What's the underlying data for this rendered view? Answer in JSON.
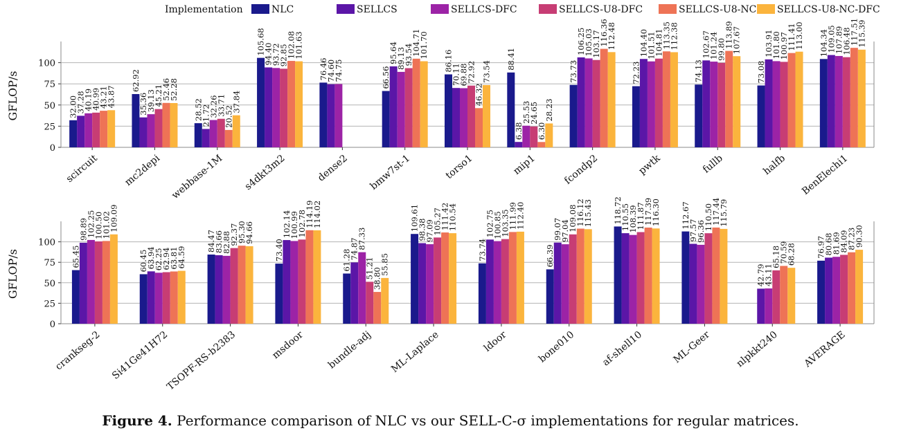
{
  "legend": {
    "title": "Implementation",
    "entries": [
      "NLC",
      "SELLCS",
      "SELLCS-DFC",
      "SELLCS-U8-DFC",
      "SELLCS-U8-NC",
      "SELLCS-U8-NC-DFC"
    ]
  },
  "colors": [
    "#1a1a8c",
    "#5b16a7",
    "#9c23a6",
    "#c73d74",
    "#ee7356",
    "#fbb43d"
  ],
  "caption": {
    "label": "Figure 4.",
    "text": "Performance comparison of NLC vs our SELL-C-σ implementations for regular matrices."
  },
  "chart_data": [
    {
      "type": "bar",
      "ylabel": "GFLOP/s",
      "ylim": [
        0,
        125
      ],
      "yticks": [
        0,
        25,
        50,
        75,
        100
      ],
      "grid": true,
      "legend_position": "top",
      "categories": [
        "scircuit",
        "mc2depi",
        "webbase-1M",
        "s4dkt3m2",
        "dense2",
        "bmw7st-1",
        "torso1",
        "mip1",
        "fcondp2",
        "pwtk",
        "fullb",
        "halfb",
        "BenElechi1"
      ],
      "series": [
        {
          "name": "NLC",
          "values": [
            32.0,
            62.92,
            28.52,
            105.68,
            76.46,
            66.56,
            86.16,
            88.41,
            73.73,
            72.23,
            74.13,
            73.08,
            104.34
          ]
        },
        {
          "name": "SELLCS",
          "values": [
            37.28,
            35.36,
            21.72,
            94.4,
            74.6,
            95.64,
            70.11,
            6.38,
            106.25,
            104.4,
            102.67,
            103.91,
            109.05
          ]
        },
        {
          "name": "SELLCS-DFC",
          "values": [
            40.19,
            39.13,
            32.26,
            93.72,
            74.75,
            89.13,
            69.88,
            25.53,
            105.03,
            101.51,
            101.24,
            101.8,
            107.89
          ]
        },
        {
          "name": "SELLCS-U8-DFC",
          "values": [
            40.99,
            45.21,
            33.71,
            92.85,
            null,
            93.54,
            72.92,
            24.65,
            103.17,
            104.81,
            99.8,
            100.97,
            106.48
          ]
        },
        {
          "name": "SELLCS-U8-NC",
          "values": [
            43.21,
            52.46,
            20.52,
            102.08,
            null,
            104.71,
            46.32,
            6.3,
            116.36,
            113.35,
            113.89,
            111.41,
            117.51
          ]
        },
        {
          "name": "SELLCS-U8-NC-DFC",
          "values": [
            43.87,
            52.28,
            37.84,
            101.63,
            null,
            101.7,
            73.54,
            28.23,
            112.48,
            112.38,
            107.67,
            113.0,
            115.39
          ]
        }
      ],
      "labels": [
        [
          "32.00",
          "62.92",
          "28.52",
          "105.68",
          "76.46",
          "66.56",
          "86.16",
          "88.41",
          "73.73",
          "72.23",
          "74.13",
          "73.08",
          "104.34"
        ],
        [
          "37.28",
          "35.36",
          "21.72",
          "94.40",
          "74.60",
          "95.64",
          "70.11",
          "6.38",
          "106.25",
          "104.40",
          "102.67",
          "103.91",
          "109.05"
        ],
        [
          "40.19",
          "39.13",
          "32.26",
          "93.72",
          "74.75",
          "89.13",
          "69.88",
          "25.53",
          "105.03",
          "101.51",
          "101.24",
          "101.80",
          "107.89"
        ],
        [
          "40.99",
          "45.21",
          "33.71",
          "92.85",
          "",
          "93.54",
          "72.92",
          "24.65",
          "103.17",
          "104.81",
          "99.80",
          "100.97",
          "106.48"
        ],
        [
          "43.21",
          "52.46",
          "20.52",
          "102.08",
          "",
          "104.71",
          "46.32",
          "6.30",
          "116.36",
          "113.35",
          "113.89",
          "111.41",
          "117.51"
        ],
        [
          "43.87",
          "52.28",
          "37.84",
          "101.63",
          "",
          "101.70",
          "73.54",
          "28.23",
          "112.48",
          "112.38",
          "107.67",
          "113.00",
          "115.39"
        ]
      ]
    },
    {
      "type": "bar",
      "ylabel": "GFLOP/s",
      "ylim": [
        0,
        125
      ],
      "yticks": [
        0,
        25,
        50,
        75,
        100
      ],
      "grid": true,
      "categories": [
        "crankseg-2",
        "Si41Ge41H72",
        "TSOPF-RS-b2383",
        "msdoor",
        "bundle-adj",
        "ML-Laplace",
        "ldoor",
        "bone010",
        "af-shell10",
        "ML-Geer",
        "nlpkkt240",
        "AVERAGE"
      ],
      "series": [
        {
          "name": "NLC",
          "values": [
            65.45,
            60.45,
            84.47,
            73.4,
            61.28,
            109.61,
            73.74,
            66.39,
            118.72,
            112.67,
            null,
            76.97
          ]
        },
        {
          "name": "SELLCS",
          "values": [
            98.89,
            63.94,
            83.66,
            102.14,
            74.87,
            98.38,
            102.75,
            99.07,
            110.55,
            97.57,
            42.79,
            80.68
          ]
        },
        {
          "name": "SELLCS-DFC",
          "values": [
            102.25,
            62.25,
            82.88,
            100.99,
            87.33,
            97.09,
            100.85,
            97.04,
            108.39,
            96.36,
            43.11,
            81.69
          ]
        },
        {
          "name": "SELLCS-U8-DFC",
          "values": [
            100.5,
            62.94,
            92.37,
            102.78,
            51.21,
            105.27,
            103.35,
            109.08,
            111.87,
            110.5,
            65.18,
            84.09
          ]
        },
        {
          "name": "SELLCS-U8-NC",
          "values": [
            101.02,
            63.81,
            95.3,
            114.19,
            38.8,
            111.42,
            111.99,
            116.12,
            117.39,
            117.44,
            70.59,
            87.23
          ]
        },
        {
          "name": "SELLCS-U8-NC-DFC",
          "values": [
            109.09,
            64.59,
            94.66,
            114.02,
            55.85,
            110.54,
            112.4,
            115.43,
            116.3,
            115.79,
            68.28,
            90.3
          ]
        }
      ],
      "labels": [
        [
          "65.45",
          "60.45",
          "84.47",
          "73.40",
          "61.28",
          "109.61",
          "73.74",
          "66.39",
          "118.72",
          "112.67",
          "",
          "76.97"
        ],
        [
          "98.89",
          "63.94",
          "83.66",
          "102.14",
          "74.87",
          "98.38",
          "102.75",
          "99.07",
          "110.55",
          "97.57",
          "42.79",
          "80.68"
        ],
        [
          "102.25",
          "62.25",
          "82.88",
          "100.99",
          "87.33",
          "97.09",
          "100.85",
          "97.04",
          "108.39",
          "96.36",
          "43.11",
          "81.69"
        ],
        [
          "100.50",
          "62.94",
          "92.37",
          "102.78",
          "51.21",
          "105.27",
          "103.35",
          "109.08",
          "111.87",
          "110.50",
          "65.18",
          "84.09"
        ],
        [
          "101.02",
          "63.81",
          "95.30",
          "114.19",
          "38.80",
          "111.42",
          "111.99",
          "116.12",
          "117.39",
          "117.44",
          "70.59",
          "87.23"
        ],
        [
          "109.09",
          "64.59",
          "94.66",
          "114.02",
          "55.85",
          "110.54",
          "112.40",
          "115.43",
          "116.30",
          "115.79",
          "68.28",
          "90.30"
        ]
      ]
    }
  ]
}
